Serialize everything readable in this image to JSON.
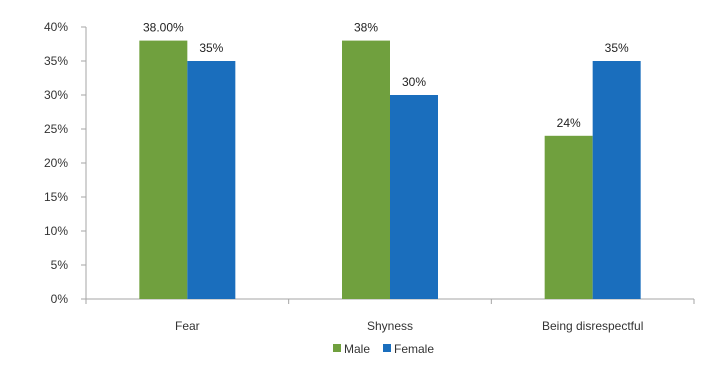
{
  "chart_data": {
    "type": "bar",
    "categories": [
      "Fear",
      "Shyness",
      "Being disrespectful"
    ],
    "series": [
      {
        "name": "Male",
        "values": [
          38,
          38,
          24
        ],
        "labels": [
          "38.00%",
          "38%",
          "24%"
        ],
        "color": "#70a03e"
      },
      {
        "name": "Female",
        "values": [
          35,
          30,
          35
        ],
        "labels": [
          "35%",
          "30%",
          "35%"
        ],
        "color": "#1a6ebd"
      }
    ],
    "y_ticks": [
      "0%",
      "5%",
      "10%",
      "15%",
      "20%",
      "25%",
      "30%",
      "35%",
      "40%"
    ],
    "ylim": [
      0,
      40
    ],
    "grid": false,
    "legend_position": "bottom-center"
  }
}
